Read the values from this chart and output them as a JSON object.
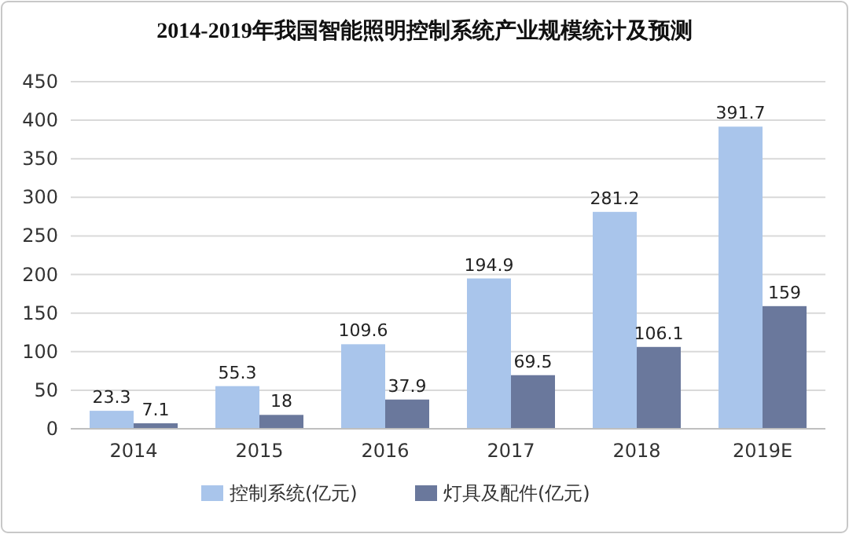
{
  "chart_data": {
    "type": "bar",
    "title": "2014-2019年我国智能照明控制系统产业规模统计及预测",
    "categories": [
      "2014",
      "2015",
      "2016",
      "2017",
      "2018",
      "2019E"
    ],
    "series": [
      {
        "name": "控制系统(亿元)",
        "color": "#a9c5eb",
        "values": [
          23.3,
          55.3,
          109.6,
          194.9,
          281.2,
          391.7
        ]
      },
      {
        "name": "灯具及配件(亿元)",
        "color": "#6a789c",
        "values": [
          7.1,
          18,
          37.9,
          69.5,
          106.1,
          159
        ]
      }
    ],
    "ylim": [
      0,
      450
    ],
    "yticks": [
      0,
      50,
      100,
      150,
      200,
      250,
      300,
      350,
      400,
      450
    ],
    "grid": "y",
    "legend": "bottom",
    "data_labels": true
  }
}
